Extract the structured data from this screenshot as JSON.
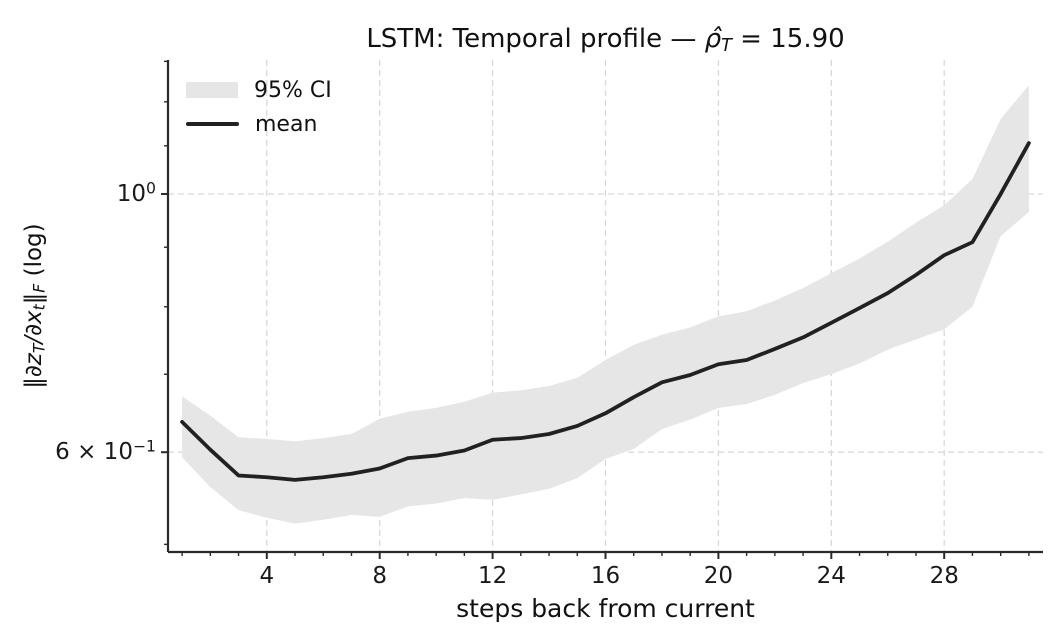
{
  "chart_data": {
    "type": "line",
    "title_plain": "LSTM: Temporal profile — ρ̂_T = 15.90",
    "title_parts": [
      {
        "text": "LSTM: Temporal profile — "
      },
      {
        "text": "ρ̂",
        "italic": true
      },
      {
        "text": "T",
        "script": "sub",
        "italic": true
      },
      {
        "text": " = 15.90"
      }
    ],
    "xlabel": "steps back from current",
    "ylabel_plain": "‖∂z_T/∂x_t‖_F (log)",
    "ylabel_parts": [
      {
        "text": "‖"
      },
      {
        "text": "∂z",
        "italic": true
      },
      {
        "text": "T",
        "script": "sub",
        "italic": true
      },
      {
        "text": "/",
        "italic": true
      },
      {
        "text": "∂x",
        "italic": true
      },
      {
        "text": "t",
        "script": "sub",
        "italic": true
      },
      {
        "text": "‖"
      },
      {
        "text": "F",
        "script": "sub",
        "italic": true
      },
      {
        "text": " (log)"
      }
    ],
    "legend": [
      {
        "label": "95% CI",
        "swatch": "band"
      },
      {
        "label": "mean",
        "swatch": "line"
      }
    ],
    "x": [
      1,
      2,
      3,
      4,
      5,
      6,
      7,
      8,
      9,
      10,
      11,
      12,
      13,
      14,
      15,
      16,
      17,
      18,
      19,
      20,
      21,
      22,
      23,
      24,
      25,
      26,
      27,
      28,
      29,
      30,
      31
    ],
    "series": [
      {
        "name": "mean",
        "role": "mean",
        "values": [
          0.637,
          0.603,
          0.573,
          0.571,
          0.568,
          0.571,
          0.575,
          0.581,
          0.593,
          0.596,
          0.602,
          0.615,
          0.617,
          0.622,
          0.632,
          0.648,
          0.669,
          0.689,
          0.699,
          0.714,
          0.72,
          0.736,
          0.753,
          0.775,
          0.798,
          0.822,
          0.852,
          0.886,
          0.909,
          1.0,
          1.106
        ]
      },
      {
        "name": "95% CI upper",
        "role": "upper",
        "values": [
          0.67,
          0.645,
          0.618,
          0.616,
          0.613,
          0.617,
          0.622,
          0.641,
          0.65,
          0.655,
          0.663,
          0.675,
          0.678,
          0.684,
          0.695,
          0.72,
          0.742,
          0.757,
          0.768,
          0.785,
          0.793,
          0.81,
          0.83,
          0.855,
          0.88,
          0.91,
          0.945,
          0.978,
          1.03,
          1.16,
          1.24
        ]
      },
      {
        "name": "95% CI lower",
        "role": "lower",
        "values": [
          0.594,
          0.56,
          0.535,
          0.527,
          0.521,
          0.525,
          0.53,
          0.528,
          0.539,
          0.542,
          0.548,
          0.546,
          0.552,
          0.558,
          0.57,
          0.592,
          0.604,
          0.628,
          0.64,
          0.655,
          0.66,
          0.672,
          0.688,
          0.7,
          0.715,
          0.735,
          0.75,
          0.765,
          0.8,
          0.92,
          0.965
        ]
      }
    ],
    "xticks": [
      4,
      8,
      12,
      16,
      20,
      24,
      28
    ],
    "xminor_step": 1,
    "yticks": [
      {
        "value": 1.0,
        "label": "10^0",
        "parts": [
          {
            "text": "10"
          },
          {
            "text": "0",
            "script": "sup"
          }
        ]
      },
      {
        "value": 0.6,
        "label": "6 × 10^-1",
        "parts": [
          {
            "text": "6 × 10"
          },
          {
            "text": "−1",
            "script": "sup"
          }
        ]
      }
    ],
    "yminor": [
      0.5,
      0.7,
      0.8,
      0.9,
      1.1,
      1.2,
      1.3
    ],
    "xlim": [
      0.5,
      31.5
    ],
    "ylim": [
      0.4925,
      1.3035
    ],
    "yscale": "log",
    "grid": {
      "x": true,
      "y": true,
      "style": "dashed"
    },
    "colors": {
      "mean": "#212121",
      "band": "#e6e6e6",
      "grid": "#d9d9d9",
      "spine": "#2a2a2a",
      "text": "#111111",
      "background": "#ffffff"
    }
  }
}
